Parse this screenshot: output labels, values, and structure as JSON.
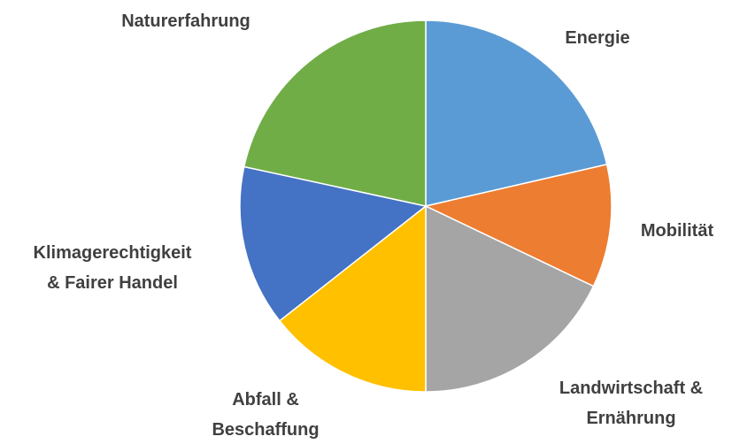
{
  "chart_data": {
    "type": "pie",
    "categories": [
      "Energie",
      "Mobilität",
      "Landwirtschaft &\nErnährung",
      "Abfall &\nBeschaffung",
      "Klimagerechtigkeit\n& Fairer Handel",
      "Naturerfahrung"
    ],
    "values": [
      21.4,
      10.7,
      17.9,
      14.4,
      14,
      21.6
    ],
    "colors": [
      "#5b9bd5",
      "#ed7d31",
      "#a5a5a5",
      "#ffc000",
      "#4472c4",
      "#70ad47"
    ]
  }
}
